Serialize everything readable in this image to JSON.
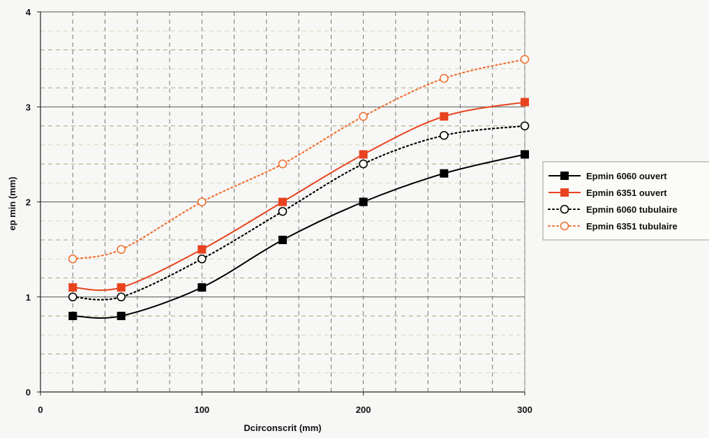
{
  "chart_data": {
    "type": "line",
    "xlabel": "Dcirconscrit (mm)",
    "ylabel": "ep min (mm)",
    "xlim": [
      0,
      300
    ],
    "ylim": [
      0,
      4
    ],
    "x_ticks": [
      0,
      100,
      200,
      300
    ],
    "y_ticks": [
      0,
      1,
      2,
      3,
      4
    ],
    "x_minor_gridlines": [
      20,
      40,
      60,
      80,
      100,
      120,
      140,
      160,
      180,
      200,
      220,
      240,
      260,
      280,
      300
    ],
    "y_minor_gridlines": [
      0.2,
      0.4,
      0.6,
      0.8,
      1.2,
      1.4,
      1.6,
      1.8,
      2.2,
      2.4,
      2.6,
      2.8,
      3.2,
      3.4,
      3.6,
      3.8
    ],
    "grid": true,
    "legend_position": "right",
    "x": [
      20,
      50,
      100,
      150,
      200,
      250,
      300
    ],
    "series": [
      {
        "name": "Epmin 6060 ouvert",
        "values": [
          0.8,
          0.8,
          1.1,
          1.6,
          2.0,
          2.3,
          2.5
        ],
        "color": "#000000",
        "line_style": "solid",
        "marker": "filled-square"
      },
      {
        "name": "Epmin 6351 ouvert",
        "values": [
          1.1,
          1.1,
          1.5,
          2.0,
          2.5,
          2.9,
          3.05
        ],
        "color": "#e8431e",
        "line_style": "solid",
        "marker": "filled-square"
      },
      {
        "name": "Epmin 6060 tubulaire",
        "values": [
          1.0,
          1.0,
          1.4,
          1.9,
          2.4,
          2.7,
          2.8
        ],
        "color": "#000000",
        "line_style": "dotted",
        "marker": "open-circle"
      },
      {
        "name": "Epmin 6351 tubulaire",
        "values": [
          1.4,
          1.5,
          2.0,
          2.4,
          2.9,
          3.3,
          3.5
        ],
        "color": "#f07030",
        "line_style": "dotted",
        "marker": "open-circle"
      }
    ]
  }
}
